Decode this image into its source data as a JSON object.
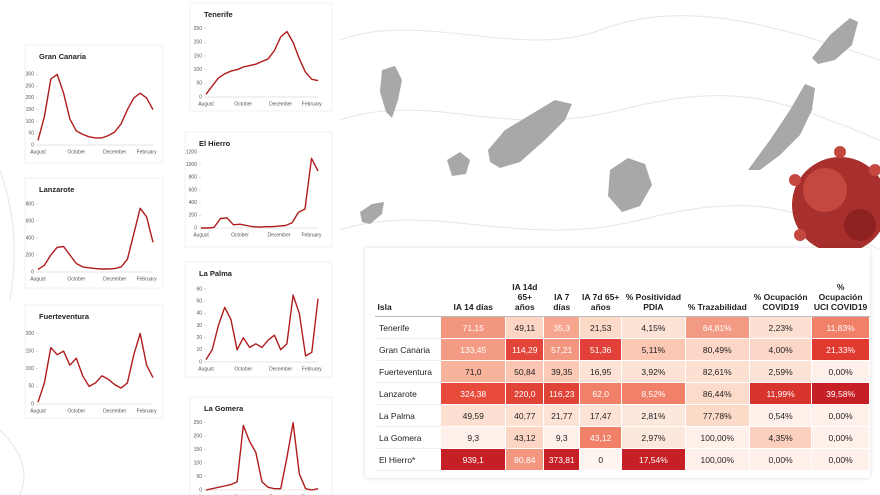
{
  "chart_data": [
    {
      "type": "line",
      "title": "Gran Canaria",
      "color": "#b01c1c",
      "categories": [
        "August",
        null,
        null,
        null,
        null,
        null,
        "October",
        null,
        null,
        null,
        null,
        null,
        "December",
        null,
        null,
        null,
        null,
        "February",
        null
      ],
      "values": [
        20,
        120,
        280,
        300,
        220,
        110,
        60,
        45,
        35,
        30,
        30,
        40,
        55,
        90,
        150,
        200,
        220,
        200,
        150
      ],
      "ylim": [
        0,
        310
      ],
      "yticks": [
        0,
        50,
        100,
        150,
        200,
        250,
        300
      ]
    },
    {
      "type": "line",
      "title": "Tenerife",
      "color": "#b01c1c",
      "categories": [
        "August",
        null,
        null,
        null,
        null,
        null,
        "October",
        null,
        null,
        null,
        null,
        null,
        "December",
        null,
        null,
        null,
        null,
        "February",
        null
      ],
      "values": [
        10,
        40,
        70,
        85,
        95,
        100,
        110,
        115,
        120,
        130,
        140,
        170,
        220,
        240,
        200,
        140,
        90,
        65,
        60
      ],
      "ylim": [
        0,
        260
      ],
      "yticks": [
        0,
        50,
        100,
        150,
        200,
        250
      ]
    },
    {
      "type": "line",
      "title": "Lanzarote",
      "color": "#b01c1c",
      "categories": [
        "August",
        null,
        null,
        null,
        null,
        null,
        "October",
        null,
        null,
        null,
        null,
        null,
        "December",
        null,
        null,
        null,
        null,
        "February",
        null
      ],
      "values": [
        30,
        80,
        200,
        290,
        300,
        200,
        100,
        60,
        50,
        40,
        35,
        35,
        40,
        60,
        150,
        450,
        750,
        650,
        350
      ],
      "ylim": [
        0,
        800
      ],
      "yticks": [
        0,
        200,
        400,
        600,
        800
      ]
    },
    {
      "type": "line",
      "title": "El Hierro",
      "color": "#b01c1c",
      "categories": [
        "August",
        null,
        null,
        null,
        null,
        null,
        "October",
        null,
        null,
        null,
        null,
        null,
        "December",
        null,
        null,
        null,
        null,
        "February",
        null
      ],
      "values": [
        0,
        0,
        10,
        150,
        160,
        50,
        60,
        40,
        20,
        15,
        20,
        20,
        30,
        40,
        80,
        250,
        300,
        1100,
        900
      ],
      "ylim": [
        0,
        1200
      ],
      "yticks": [
        0,
        200,
        400,
        600,
        800,
        1000,
        1200
      ]
    },
    {
      "type": "line",
      "title": "Fuerteventura",
      "color": "#b01c1c",
      "categories": [
        "August",
        null,
        null,
        null,
        null,
        null,
        "October",
        null,
        null,
        null,
        null,
        null,
        "December",
        null,
        null,
        null,
        null,
        "February",
        null
      ],
      "values": [
        5,
        60,
        160,
        140,
        150,
        110,
        130,
        80,
        50,
        60,
        80,
        70,
        55,
        45,
        60,
        140,
        200,
        110,
        75
      ],
      "ylim": [
        0,
        210
      ],
      "yticks": [
        0,
        50,
        100,
        150,
        200
      ]
    },
    {
      "type": "line",
      "title": "La Palma",
      "color": "#b01c1c",
      "categories": [
        "August",
        null,
        null,
        null,
        null,
        null,
        "October",
        null,
        null,
        null,
        null,
        null,
        "December",
        null,
        null,
        null,
        null,
        "February",
        null
      ],
      "values": [
        2,
        10,
        30,
        45,
        35,
        10,
        20,
        12,
        15,
        12,
        18,
        22,
        10,
        15,
        55,
        40,
        5,
        8,
        52
      ],
      "ylim": [
        0,
        60
      ],
      "yticks": [
        0,
        10,
        20,
        30,
        40,
        50,
        60
      ]
    },
    {
      "type": "line",
      "title": "La Gomera",
      "color": "#b01c1c",
      "categories": [
        "August",
        null,
        null,
        null,
        null,
        null,
        "October",
        null,
        null,
        null,
        null,
        null,
        "December",
        null,
        null,
        null,
        null,
        "February",
        null
      ],
      "values": [
        0,
        5,
        10,
        15,
        20,
        30,
        240,
        180,
        140,
        30,
        10,
        5,
        5,
        120,
        250,
        60,
        5,
        0,
        5
      ],
      "ylim": [
        0,
        260
      ],
      "yticks": [
        0,
        50,
        100,
        150,
        200,
        250
      ]
    }
  ],
  "table": {
    "header": [
      "Isla",
      "IA 14 días",
      "IA 14d 65+ años",
      "IA 7 días",
      "IA 7d 65+ años",
      "% Positividad PDIA",
      "% Trazabilidad",
      "% Ocupación COVID19",
      "% Ocupación UCI COVID19"
    ],
    "rows": [
      {
        "cells": [
          "Tenerife",
          "71,15",
          "49,11",
          "35,3",
          "21,53",
          "4,15%",
          "64,81%",
          "2,23%",
          "11,83%"
        ],
        "colors": [
          "#ffffff",
          "#f39680",
          "#fcd5c4",
          "#f7a58e",
          "#fdd9c8",
          "#fde3d6",
          "#f29a83",
          "#fde0d2",
          "#f08068"
        ]
      },
      {
        "cells": [
          "Gran Canaria",
          "133,45",
          "114,29",
          "57,21",
          "51,36",
          "5,11%",
          "80,49%",
          "4,00%",
          "21,33%"
        ],
        "colors": [
          "#ffffff",
          "#f39b84",
          "#e4453b",
          "#f39680",
          "#e3403a",
          "#fbc7b3",
          "#fcd6c6",
          "#fcd6c6",
          "#e0392f"
        ]
      },
      {
        "cells": [
          "Fuerteventura",
          "71,0",
          "50,84",
          "39,35",
          "16,95",
          "3,92%",
          "82,61%",
          "2,59%",
          "0,00%"
        ],
        "colors": [
          "#ffffff",
          "#f8b39c",
          "#fbc5b1",
          "#fcc9b5",
          "#fde3d6",
          "#fde3d6",
          "#fde0d2",
          "#fde3d6",
          "#fff1ea"
        ]
      },
      {
        "cells": [
          "Lanzarote",
          "324,38",
          "220,0",
          "116,23",
          "62,0",
          "8,52%",
          "86,44%",
          "11,99%",
          "39,58%"
        ],
        "colors": [
          "#ffffff",
          "#e84a3c",
          "#e04437",
          "#e04437",
          "#f08068",
          "#f08068",
          "#fddbcb",
          "#d8332c",
          "#c61f26"
        ]
      },
      {
        "cells": [
          "La Palma",
          "49,59",
          "40,77",
          "21,77",
          "17,47",
          "2,81%",
          "77,78%",
          "0,54%",
          "0,00%"
        ],
        "colors": [
          "#ffffff",
          "#fde0d2",
          "#fde0d2",
          "#fde3d6",
          "#fde3d6",
          "#fde8dd",
          "#fdd9c8",
          "#fff1ea",
          "#fff1ea"
        ]
      },
      {
        "cells": [
          "La Gomera",
          "9,3",
          "43,12",
          "9,3",
          "43,12",
          "2,97%",
          "100,00%",
          "4,35%",
          "0,00%"
        ],
        "colors": [
          "#ffffff",
          "#fff1ea",
          "#fcd5c4",
          "#fff1ea",
          "#f08068",
          "#fde8dd",
          "#fff1ea",
          "#fcd0be",
          "#fff1ea"
        ]
      },
      {
        "cells": [
          "El Hierro*",
          "939,1",
          "80,84",
          "373,81",
          "0",
          "17,54%",
          "100,00%",
          "0,00%",
          "0,00%"
        ],
        "colors": [
          "#ffffff",
          "#c61f26",
          "#f39680",
          "#c61f26",
          "#fff5f0",
          "#c61f26",
          "#fff1ea",
          "#fff1ea",
          "#fff1ea"
        ]
      }
    ]
  }
}
